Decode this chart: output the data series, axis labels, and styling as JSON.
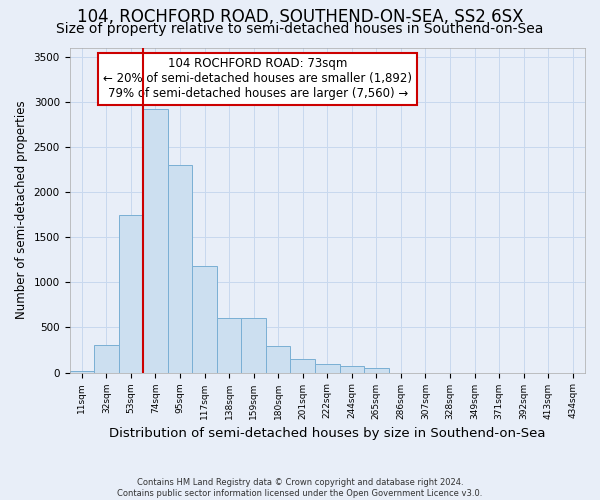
{
  "title": "104, ROCHFORD ROAD, SOUTHEND-ON-SEA, SS2 6SX",
  "subtitle": "Size of property relative to semi-detached houses in Southend-on-Sea",
  "xlabel": "Distribution of semi-detached houses by size in Southend-on-Sea",
  "ylabel": "Number of semi-detached properties",
  "categories": [
    "11sqm",
    "32sqm",
    "53sqm",
    "74sqm",
    "95sqm",
    "117sqm",
    "138sqm",
    "159sqm",
    "180sqm",
    "201sqm",
    "222sqm",
    "244sqm",
    "265sqm",
    "286sqm",
    "307sqm",
    "328sqm",
    "349sqm",
    "371sqm",
    "392sqm",
    "413sqm",
    "434sqm"
  ],
  "values": [
    20,
    310,
    1750,
    2920,
    2300,
    1180,
    600,
    600,
    290,
    145,
    100,
    70,
    55,
    0,
    0,
    0,
    0,
    0,
    0,
    0,
    0
  ],
  "bar_color": "#ccdff0",
  "bar_edge_color": "#7aafd4",
  "property_line_index": 3,
  "property_label": "104 ROCHFORD ROAD: 73sqm",
  "annotation_smaller": "← 20% of semi-detached houses are smaller (1,892)",
  "annotation_larger": "79% of semi-detached houses are larger (7,560) →",
  "ylim": [
    0,
    3600
  ],
  "yticks": [
    0,
    500,
    1000,
    1500,
    2000,
    2500,
    3000,
    3500
  ],
  "title_fontsize": 12,
  "subtitle_fontsize": 10,
  "xlabel_fontsize": 9.5,
  "ylabel_fontsize": 8.5,
  "footer_line1": "Contains HM Land Registry data © Crown copyright and database right 2024.",
  "footer_line2": "Contains public sector information licensed under the Open Government Licence v3.0.",
  "background_color": "#e8eef8",
  "plot_bg_color": "#e8eef8",
  "grid_color": "#c8d8ee",
  "red_line_color": "#cc0000",
  "annotation_box_color": "#cc0000"
}
